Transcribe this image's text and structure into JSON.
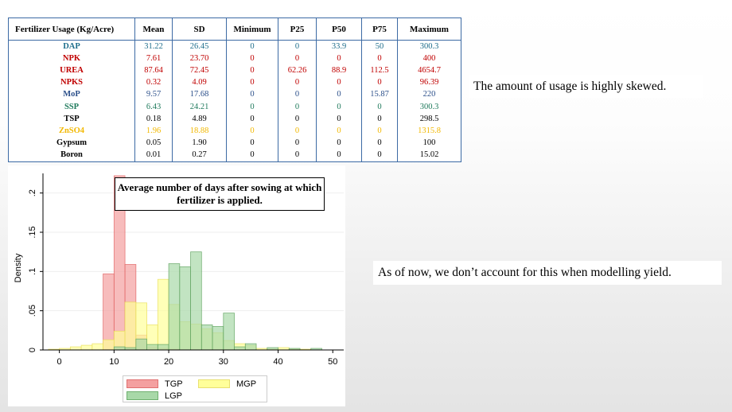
{
  "table": {
    "headers": [
      "Fertilizer Usage (Kg/Acre)",
      "Mean",
      "SD",
      "Minimum",
      "P25",
      "P50",
      "P75",
      "Maximum"
    ],
    "rows": [
      {
        "name": "DAP",
        "values": [
          "31.22",
          "26.45",
          "0",
          "0",
          "33.9",
          "50",
          "300.3"
        ],
        "color": "#1f6e8c"
      },
      {
        "name": "NPK",
        "values": [
          "7.61",
          "23.70",
          "0",
          "0",
          "0",
          "0",
          "400"
        ],
        "color": "#c00000"
      },
      {
        "name": "UREA",
        "values": [
          "87.64",
          "72.45",
          "0",
          "62.26",
          "88.9",
          "112.5",
          "4654.7"
        ],
        "color": "#c00000"
      },
      {
        "name": "NPKS",
        "values": [
          "0.32",
          "4.09",
          "0",
          "0",
          "0",
          "0",
          "96.39"
        ],
        "color": "#c00000"
      },
      {
        "name": "MoP",
        "values": [
          "9.57",
          "17.68",
          "0",
          "0",
          "0",
          "15.87",
          "220"
        ],
        "color": "#2b4f8a"
      },
      {
        "name": "SSP",
        "values": [
          "6.43",
          "24.21",
          "0",
          "0",
          "0",
          "0",
          "300.3"
        ],
        "color": "#1f7a5c"
      },
      {
        "name": "TSP",
        "values": [
          "0.18",
          "4.89",
          "0",
          "0",
          "0",
          "0",
          "298.5"
        ],
        "color": "#000000"
      },
      {
        "name": "ZnSO4",
        "values": [
          "1.96",
          "18.88",
          "0",
          "0",
          "0",
          "0",
          "1315.8"
        ],
        "color": "#f2b800"
      },
      {
        "name": "Gypsum",
        "values": [
          "0.05",
          "1.90",
          "0",
          "0",
          "0",
          "0",
          "100"
        ],
        "color": "#000000"
      },
      {
        "name": "Boron",
        "values": [
          "0.01",
          "0.27",
          "0",
          "0",
          "0",
          "0",
          "15.02"
        ],
        "color": "#000000"
      }
    ],
    "border_color": "#3c6aa4"
  },
  "notes": {
    "skew": "The amount of usage is highly skewed.",
    "modelling": "As of now, we don’t account for this when modelling yield."
  },
  "chart_data": {
    "type": "bar",
    "title": "Average number of days after sowing at which fertilizer is applied.",
    "xlabel": "",
    "ylabel": "Density",
    "xlim": [
      -3,
      52
    ],
    "ylim": [
      0,
      0.225
    ],
    "xticks": [
      "0",
      "10",
      "20",
      "30",
      "40",
      "50"
    ],
    "yticks": [
      "0",
      ".05",
      ".1",
      ".15",
      ".2"
    ],
    "bin_width": 2,
    "bin_starts": [
      -2,
      0,
      2,
      4,
      6,
      8,
      10,
      12,
      14,
      16,
      18,
      20,
      22,
      24,
      26,
      28,
      30,
      32,
      34,
      36,
      38,
      40,
      42,
      44,
      46,
      48
    ],
    "grid": true,
    "legend": "bottom",
    "series": [
      {
        "name": "TGP",
        "color": "#f4a0a0",
        "values": [
          0,
          0,
          0,
          0,
          0,
          0.097,
          0.222,
          0.109,
          0.019,
          0.004,
          0.002,
          0.001,
          0,
          0,
          0,
          0,
          0,
          0,
          0,
          0,
          0,
          0,
          0,
          0,
          0,
          0
        ]
      },
      {
        "name": "MGP",
        "color": "#ffff9a",
        "values": [
          0.001,
          0.002,
          0.004,
          0.006,
          0.008,
          0.013,
          0.024,
          0.061,
          0.06,
          0.032,
          0.09,
          0.058,
          0.036,
          0.033,
          0.027,
          0.022,
          0.012,
          0.008,
          0.006,
          0.002,
          0.001,
          0.003,
          0.001,
          0.001,
          0,
          0
        ]
      },
      {
        "name": "LGP",
        "color": "#a8d8a8",
        "values": [
          0,
          0,
          0,
          0,
          0,
          0,
          0.004,
          0.003,
          0.014,
          0.007,
          0.007,
          0.11,
          0.106,
          0.125,
          0.032,
          0.03,
          0.047,
          0.004,
          0.008,
          0,
          0.003,
          0,
          0.002,
          0,
          0.002,
          0
        ]
      }
    ]
  }
}
